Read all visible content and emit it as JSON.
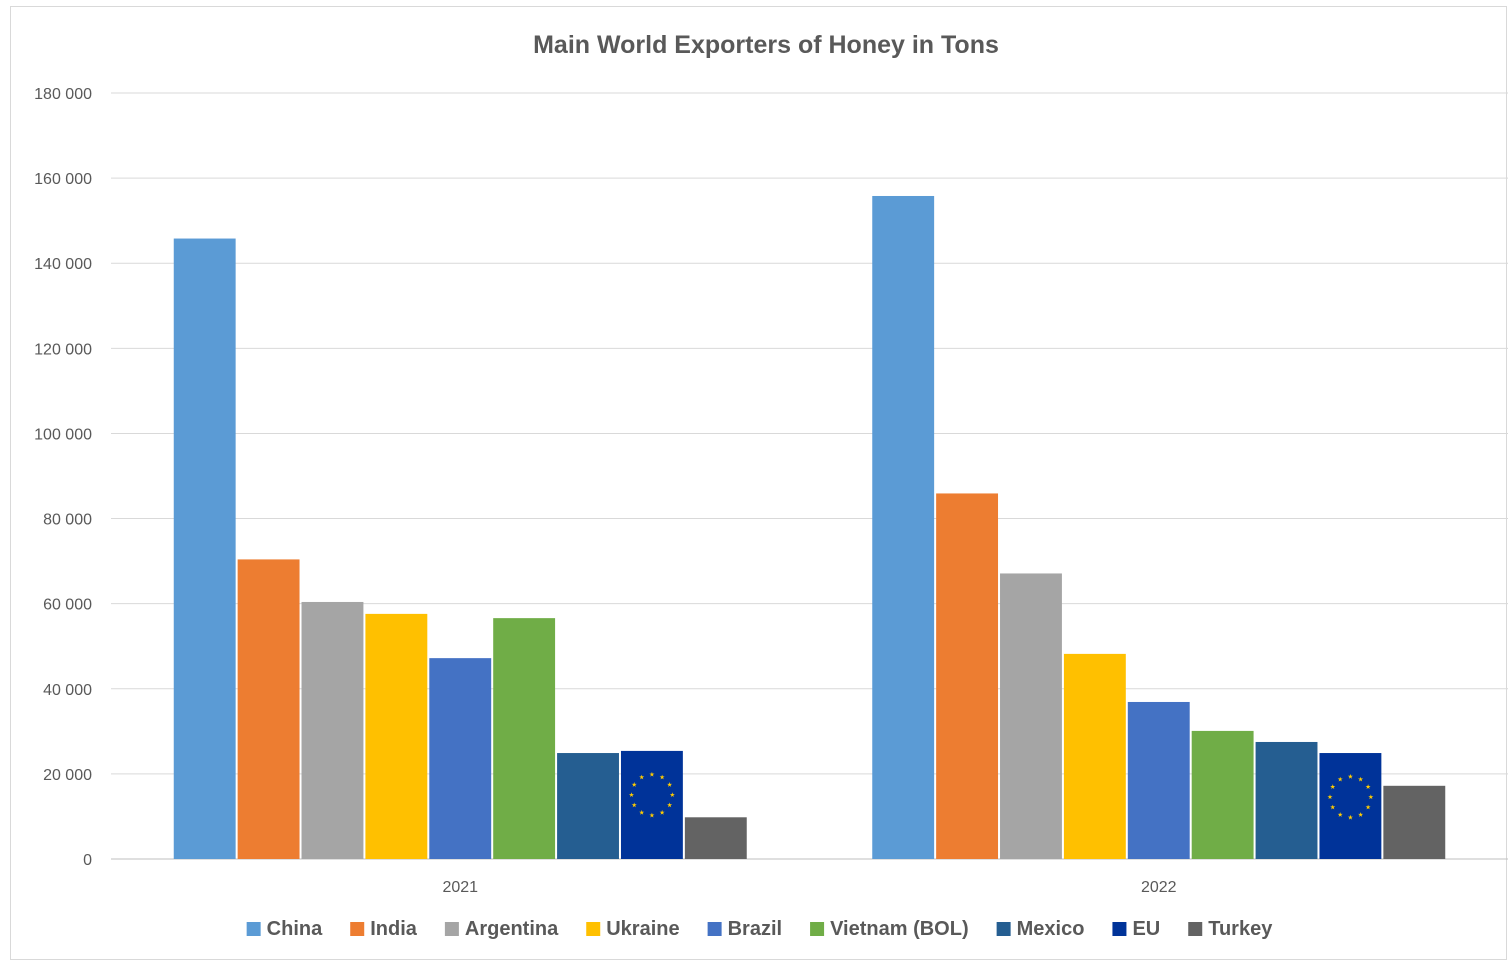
{
  "chart_data": {
    "type": "bar",
    "title": "Main World Exporters of Honey in Tons",
    "xlabel": "",
    "ylabel": "",
    "categories": [
      "2021",
      "2022"
    ],
    "ylim": [
      0,
      180000
    ],
    "yticks": [
      0,
      20000,
      40000,
      60000,
      80000,
      100000,
      120000,
      140000,
      160000,
      180000
    ],
    "ytick_labels": [
      "0",
      "20 000",
      "40 000",
      "60 000",
      "80 000",
      "100 000",
      "120 000",
      "140 000",
      "160 000",
      "180 000"
    ],
    "grid": true,
    "legend_position": "bottom",
    "series": [
      {
        "name": "China",
        "values": [
          145800,
          155800
        ],
        "color": "#5b9bd5"
      },
      {
        "name": "India",
        "values": [
          70400,
          85900
        ],
        "color": "#ed7d31"
      },
      {
        "name": "Argentina",
        "values": [
          60400,
          67100
        ],
        "color": "#a5a5a5"
      },
      {
        "name": "Ukraine",
        "values": [
          57600,
          48200
        ],
        "color": "#ffc000"
      },
      {
        "name": "Brazil",
        "values": [
          47200,
          36900
        ],
        "color": "#4472c4"
      },
      {
        "name": "Vietnam (BOL)",
        "values": [
          56600,
          30100
        ],
        "color": "#70ad47"
      },
      {
        "name": "Mexico",
        "values": [
          24900,
          27500
        ],
        "color": "#255e91"
      },
      {
        "name": "EU",
        "values": [
          25400,
          24900
        ],
        "color": "#003399",
        "pattern": "eu-flag-stars"
      },
      {
        "name": "Turkey",
        "values": [
          9800,
          17200
        ],
        "color": "#636363"
      }
    ]
  }
}
